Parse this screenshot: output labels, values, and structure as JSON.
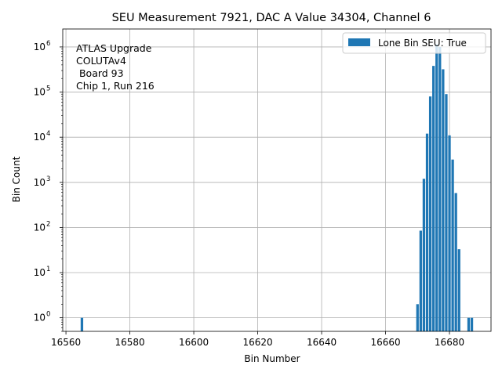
{
  "chart_data": {
    "type": "bar",
    "title": "SEU Measurement 7921, DAC A Value 34304, Channel 6",
    "xlabel": "Bin Number",
    "ylabel": "Bin Count",
    "xlim": [
      16559.0,
      16693.0
    ],
    "ylim": [
      0.5,
      2500000
    ],
    "yscale": "log",
    "grid": true,
    "x_ticks": [
      16560,
      16580,
      16600,
      16620,
      16640,
      16660,
      16680
    ],
    "y_ticks": [
      1,
      10,
      100,
      1000,
      10000,
      100000,
      1000000
    ],
    "y_tick_labels": [
      {
        "base": "10",
        "exp": "0"
      },
      {
        "base": "10",
        "exp": "1"
      },
      {
        "base": "10",
        "exp": "2"
      },
      {
        "base": "10",
        "exp": "3"
      },
      {
        "base": "10",
        "exp": "4"
      },
      {
        "base": "10",
        "exp": "5"
      },
      {
        "base": "10",
        "exp": "6"
      }
    ],
    "bar_color": "#1f77b4",
    "legend": {
      "label": "Lone Bin SEU: True",
      "position": "top-right"
    },
    "annotation": {
      "lines": [
        "ATLAS Upgrade",
        "COLUTAv4",
        " Board 93",
        "Chip 1, Run 216"
      ],
      "position": "top-left"
    },
    "series": [
      {
        "x": [
          16565,
          16670,
          16671,
          16672,
          16673,
          16674,
          16675,
          16676,
          16677,
          16678,
          16679,
          16680,
          16681,
          16682,
          16683,
          16686,
          16687
        ],
        "values": [
          1,
          2,
          85,
          1200,
          12000,
          80000,
          380000,
          1150000,
          1000000,
          320000,
          90000,
          11000,
          3200,
          580,
          33,
          1,
          1
        ]
      }
    ]
  }
}
